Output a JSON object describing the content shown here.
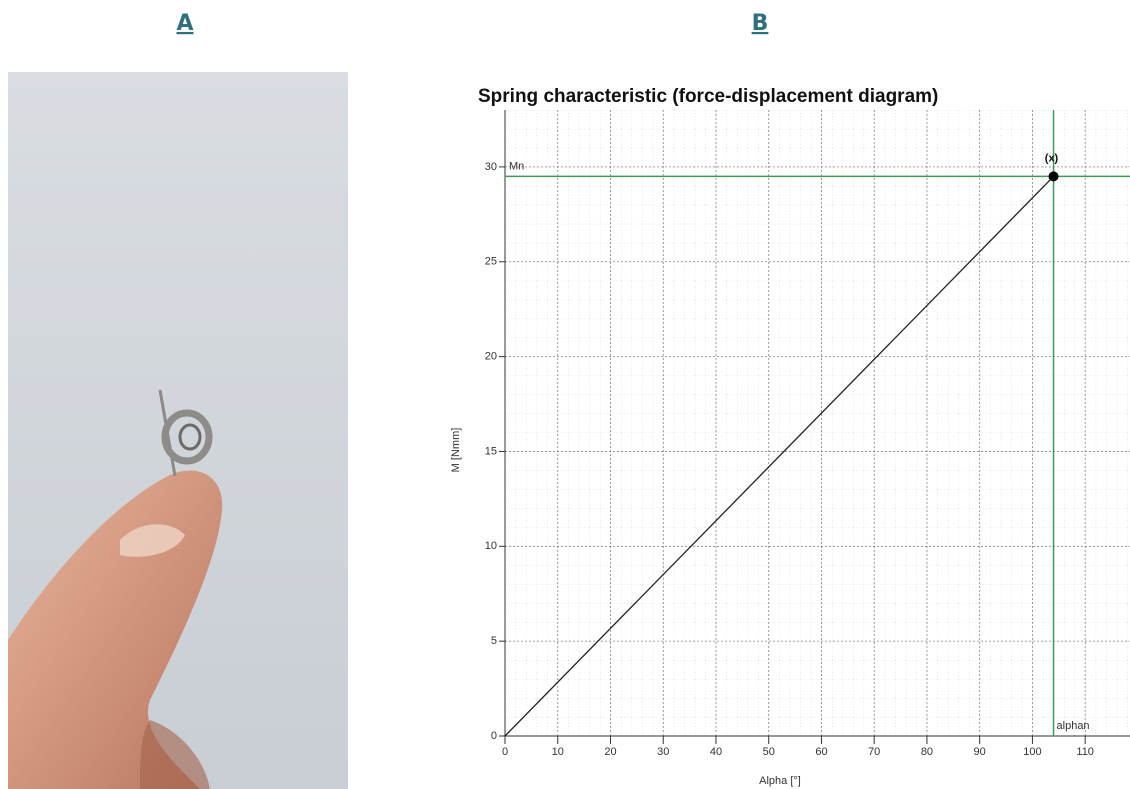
{
  "panels": {
    "left": "A",
    "right": "B"
  },
  "chart_data": {
    "type": "line",
    "title": "Spring characteristic (force-displacement diagram)",
    "x_label": "Alpha [°]",
    "y_label": "M [Nmm]",
    "series": [
      {
        "color": "#222222",
        "x": [
          0,
          104
        ],
        "values": [
          0,
          29.5
        ]
      }
    ],
    "points": [
      {
        "x": 104,
        "y": 29.5,
        "label": "(x)",
        "color": "#000000"
      }
    ],
    "reference_lines": [
      {
        "axis": "y",
        "value": 29.5,
        "label": "Mn",
        "color": "#3f9a5a"
      },
      {
        "axis": "x",
        "value": 104,
        "label": "alphan",
        "color": "#3f9a5a"
      }
    ],
    "xlim": [
      0,
      118.5
    ],
    "ylim": [
      0,
      33
    ],
    "xticks": [
      0,
      10,
      20,
      30,
      40,
      50,
      60,
      70,
      80,
      90,
      100,
      110
    ],
    "yticks": [
      0,
      5,
      10,
      15,
      20,
      25,
      30
    ],
    "grid": true
  }
}
